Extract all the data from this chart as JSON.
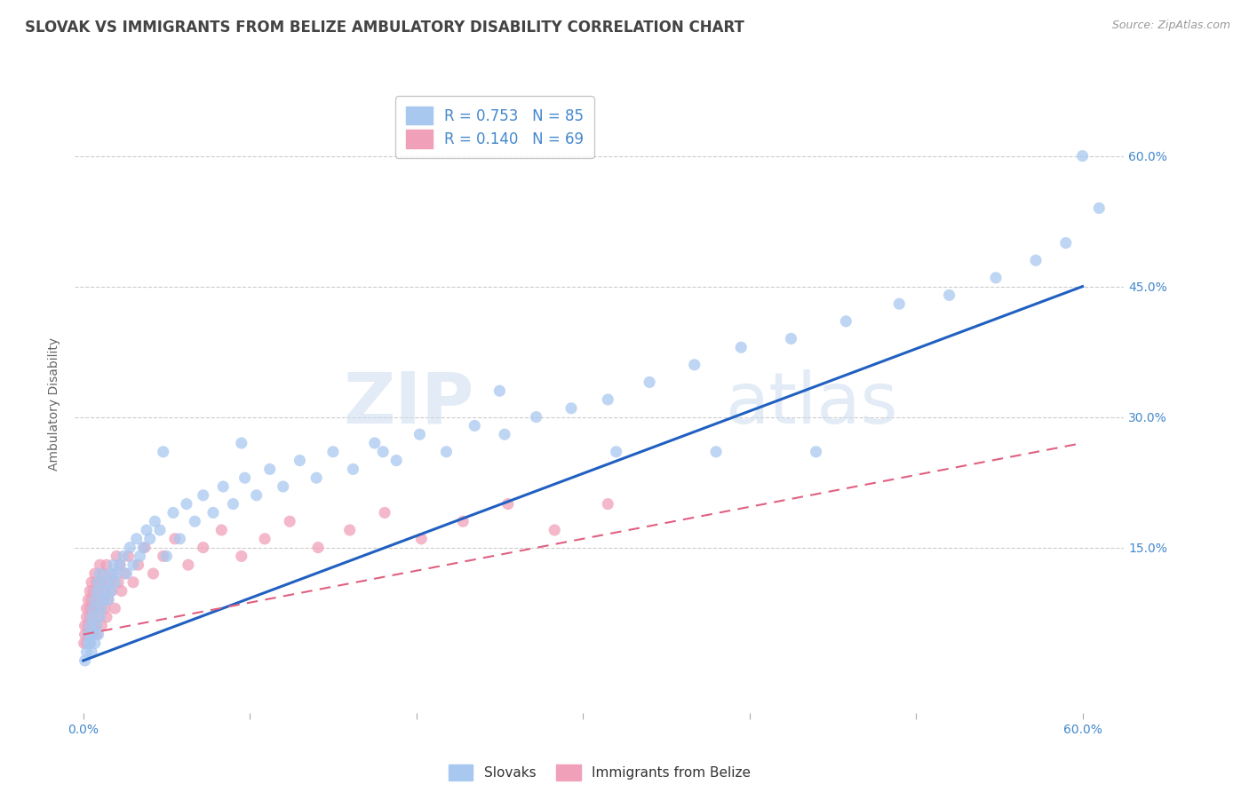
{
  "title": "SLOVAK VS IMMIGRANTS FROM BELIZE AMBULATORY DISABILITY CORRELATION CHART",
  "source": "Source: ZipAtlas.com",
  "ylabel": "Ambulatory Disability",
  "xlim": [
    -0.005,
    0.625
  ],
  "ylim": [
    -0.04,
    0.67
  ],
  "legend1_label": "R = 0.753   N = 85",
  "legend2_label": "R = 0.140   N = 69",
  "legend_label_slovak": "Slovaks",
  "legend_label_belize": "Immigrants from Belize",
  "color_slovak": "#a8c8f0",
  "color_belize": "#f0a0b8",
  "trendline_slovak_color": "#2060c0",
  "trendline_belize_color": "#e06080",
  "watermark_zip": "ZIP",
  "watermark_atlas": "atlas",
  "background_color": "#ffffff",
  "grid_color": "#cccccc",
  "title_color": "#444444",
  "tick_label_color": "#4488cc",
  "ylabel_color": "#666666",
  "slovak_x": [
    0.001,
    0.002,
    0.003,
    0.003,
    0.004,
    0.004,
    0.005,
    0.005,
    0.006,
    0.006,
    0.007,
    0.007,
    0.008,
    0.008,
    0.009,
    0.009,
    0.01,
    0.01,
    0.011,
    0.012,
    0.013,
    0.014,
    0.015,
    0.016,
    0.017,
    0.018,
    0.019,
    0.02,
    0.022,
    0.024,
    0.026,
    0.028,
    0.03,
    0.032,
    0.034,
    0.036,
    0.038,
    0.04,
    0.043,
    0.046,
    0.05,
    0.054,
    0.058,
    0.062,
    0.067,
    0.072,
    0.078,
    0.084,
    0.09,
    0.097,
    0.104,
    0.112,
    0.12,
    0.13,
    0.14,
    0.15,
    0.162,
    0.175,
    0.188,
    0.202,
    0.218,
    0.235,
    0.253,
    0.272,
    0.293,
    0.315,
    0.34,
    0.367,
    0.395,
    0.425,
    0.458,
    0.49,
    0.52,
    0.548,
    0.572,
    0.59,
    0.6,
    0.61,
    0.048,
    0.095,
    0.18,
    0.25,
    0.32,
    0.38,
    0.44
  ],
  "slovak_y": [
    0.02,
    0.03,
    0.04,
    0.05,
    0.04,
    0.06,
    0.03,
    0.07,
    0.05,
    0.08,
    0.04,
    0.09,
    0.06,
    0.1,
    0.05,
    0.11,
    0.07,
    0.12,
    0.08,
    0.09,
    0.1,
    0.11,
    0.09,
    0.12,
    0.1,
    0.13,
    0.11,
    0.12,
    0.13,
    0.14,
    0.12,
    0.15,
    0.13,
    0.16,
    0.14,
    0.15,
    0.17,
    0.16,
    0.18,
    0.17,
    0.14,
    0.19,
    0.16,
    0.2,
    0.18,
    0.21,
    0.19,
    0.22,
    0.2,
    0.23,
    0.21,
    0.24,
    0.22,
    0.25,
    0.23,
    0.26,
    0.24,
    0.27,
    0.25,
    0.28,
    0.26,
    0.29,
    0.28,
    0.3,
    0.31,
    0.32,
    0.34,
    0.36,
    0.38,
    0.39,
    0.41,
    0.43,
    0.44,
    0.46,
    0.48,
    0.5,
    0.6,
    0.54,
    0.26,
    0.27,
    0.26,
    0.33,
    0.26,
    0.26,
    0.26
  ],
  "belize_x": [
    0.0005,
    0.001,
    0.001,
    0.002,
    0.002,
    0.002,
    0.003,
    0.003,
    0.003,
    0.004,
    0.004,
    0.004,
    0.004,
    0.005,
    0.005,
    0.005,
    0.005,
    0.006,
    0.006,
    0.006,
    0.007,
    0.007,
    0.007,
    0.008,
    0.008,
    0.008,
    0.009,
    0.009,
    0.01,
    0.01,
    0.011,
    0.011,
    0.012,
    0.012,
    0.013,
    0.013,
    0.014,
    0.014,
    0.015,
    0.016,
    0.017,
    0.018,
    0.019,
    0.02,
    0.021,
    0.022,
    0.023,
    0.025,
    0.027,
    0.03,
    0.033,
    0.037,
    0.042,
    0.048,
    0.055,
    0.063,
    0.072,
    0.083,
    0.095,
    0.109,
    0.124,
    0.141,
    0.16,
    0.181,
    0.203,
    0.228,
    0.255,
    0.283,
    0.315
  ],
  "belize_y": [
    0.04,
    0.05,
    0.06,
    0.04,
    0.07,
    0.08,
    0.05,
    0.06,
    0.09,
    0.04,
    0.07,
    0.08,
    0.1,
    0.05,
    0.06,
    0.09,
    0.11,
    0.07,
    0.08,
    0.1,
    0.06,
    0.08,
    0.12,
    0.05,
    0.09,
    0.11,
    0.07,
    0.1,
    0.08,
    0.13,
    0.06,
    0.11,
    0.09,
    0.12,
    0.08,
    0.1,
    0.07,
    0.13,
    0.09,
    0.11,
    0.1,
    0.12,
    0.08,
    0.14,
    0.11,
    0.13,
    0.1,
    0.12,
    0.14,
    0.11,
    0.13,
    0.15,
    0.12,
    0.14,
    0.16,
    0.13,
    0.15,
    0.17,
    0.14,
    0.16,
    0.18,
    0.15,
    0.17,
    0.19,
    0.16,
    0.18,
    0.2,
    0.17,
    0.2
  ],
  "trendline_slovak_x0": 0.0,
  "trendline_slovak_y0": 0.02,
  "trendline_slovak_x1": 0.6,
  "trendline_slovak_y1": 0.45,
  "trendline_belize_x0": 0.0,
  "trendline_belize_y0": 0.05,
  "trendline_belize_x1": 0.6,
  "trendline_belize_y1": 0.27
}
